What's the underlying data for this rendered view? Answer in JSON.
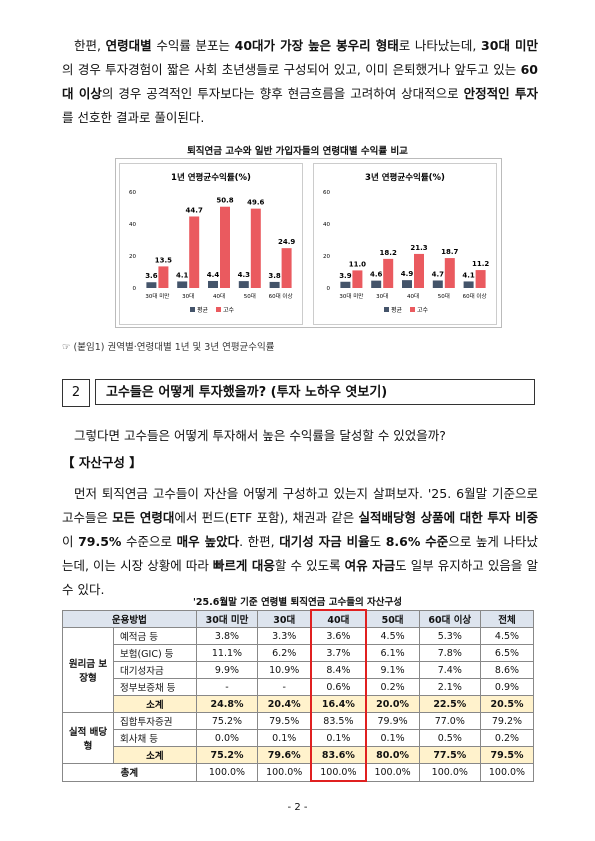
{
  "intro": [
    {
      "t": "한편, "
    },
    {
      "t": "연령대별",
      "b": true
    },
    {
      "t": " 수익률 분포는 "
    },
    {
      "t": "40대가 가장 높은 봉우리 형태",
      "b": true
    },
    {
      "t": "로 나타났는데, "
    },
    {
      "t": "30대 미만",
      "b": true
    },
    {
      "t": "의 경우 투자경험이 짧은 사회 초년생들로 구성되어 있고, 이미 은퇴했거나 앞두고 있는 "
    },
    {
      "t": "60대 이상",
      "b": true
    },
    {
      "t": "의 경우 공격적인 투자보다는 향후 현금흐름을 고려하여 상대적으로 "
    },
    {
      "t": "안정적인 투자",
      "b": true
    },
    {
      "t": "를 선호한 결과로 풀이된다."
    }
  ],
  "figure_caption": "퇴직연금 고수와 일반 가입자들의 연령대별 수익률 비교",
  "chart_data": [
    {
      "type": "bar",
      "title": "1년 연평균수익률(%)",
      "categories": [
        "30대 미만",
        "30대",
        "40대",
        "50대",
        "60대 이상"
      ],
      "series": [
        {
          "name": "평균",
          "color": "#44546a",
          "values": [
            3.6,
            4.1,
            4.4,
            4.3,
            3.8
          ]
        },
        {
          "name": "고수",
          "color": "#ea5a5f",
          "values": [
            13.5,
            44.7,
            50.8,
            49.6,
            24.9
          ]
        }
      ],
      "ylim": [
        0,
        60
      ],
      "yticks": [
        0,
        20,
        40,
        60
      ],
      "legend": "bottom"
    },
    {
      "type": "bar",
      "title": "3년 연평균수익률(%)",
      "categories": [
        "30대 미만",
        "30대",
        "40대",
        "50대",
        "60대 이상"
      ],
      "series": [
        {
          "name": "평균",
          "color": "#44546a",
          "values": [
            3.9,
            4.6,
            4.9,
            4.7,
            4.1
          ]
        },
        {
          "name": "고수",
          "color": "#ea5a5f",
          "values": [
            11.0,
            18.2,
            21.3,
            18.7,
            11.2
          ],
          "value_labels": [
            "11.0",
            "18.2",
            "21.3",
            "18.7",
            "11.2"
          ]
        }
      ],
      "ylim": [
        0,
        60
      ],
      "yticks": [
        0,
        20,
        40,
        60
      ],
      "legend": "bottom"
    }
  ],
  "note": "☞ (붙임1) 권역별·연령대별 1년 및 3년 연평균수익률",
  "section": {
    "number": "2",
    "title": "고수들은 어떻게 투자했을까? (투자 노하우 엿보기)"
  },
  "question": "그렇다면 고수들은 어떻게 투자해서 높은 수익률을 달성할 수 있었을까?",
  "subheading": "【 자산구성 】",
  "assets": [
    {
      "t": "먼저 퇴직연금 고수들이 자산을 어떻게 구성하고 있는지 살펴보자. '25. 6월말 기준으로 고수들은 "
    },
    {
      "t": "모든 연령대",
      "b": true
    },
    {
      "t": "에서 펀드(ETF 포함), 채권과 같은 "
    },
    {
      "t": "실적배당형 상품에 대한 투자 비중",
      "b": true
    },
    {
      "t": "이 "
    },
    {
      "t": "79.5%",
      "b": true
    },
    {
      "t": " 수준으로 "
    },
    {
      "t": "매우 높았다",
      "b": true
    },
    {
      "t": ". 한편, "
    },
    {
      "t": "대기성 자금 비율",
      "b": true
    },
    {
      "t": "도 "
    },
    {
      "t": "8.6% 수준",
      "b": true
    },
    {
      "t": "으로 높게 나타났는데, 이는 시장 상황에 따라 "
    },
    {
      "t": "빠르게 대응",
      "b": true
    },
    {
      "t": "할 수 있도록 "
    },
    {
      "t": "여유 자금",
      "b": true
    },
    {
      "t": "도 일부 유지하고 있음을 알 수 있다."
    }
  ],
  "table": {
    "title": "'25.6월말 기준 연령별 퇴직연금 고수들의 자산구성",
    "highlight_column": 3,
    "header": [
      "운용방법",
      "30대 미만",
      "30대",
      "40대",
      "50대",
      "60대 이상",
      "전체"
    ],
    "groups": [
      {
        "label": "원리금 보장형",
        "rows": [
          {
            "label": "예적금 등",
            "cells": [
              "3.8%",
              "3.3%",
              "3.6%",
              "4.5%",
              "5.3%",
              "4.5%"
            ]
          },
          {
            "label": "보험(GIC) 등",
            "cells": [
              "11.1%",
              "6.2%",
              "3.7%",
              "6.1%",
              "7.8%",
              "6.5%"
            ]
          },
          {
            "label": "대기성자금",
            "cells": [
              "9.9%",
              "10.9%",
              "8.4%",
              "9.1%",
              "7.4%",
              "8.6%"
            ]
          },
          {
            "label": "정부보증채 등",
            "cells": [
              "-",
              "-",
              "0.6%",
              "0.2%",
              "2.1%",
              "0.9%"
            ]
          },
          {
            "label": "소계",
            "subtotal": true,
            "cells": [
              "24.8%",
              "20.4%",
              "16.4%",
              "20.0%",
              "22.5%",
              "20.5%"
            ]
          }
        ]
      },
      {
        "label": "실적 배당형",
        "rows": [
          {
            "label": "집합투자증권",
            "cells": [
              "75.2%",
              "79.5%",
              "83.5%",
              "79.9%",
              "77.0%",
              "79.2%"
            ]
          },
          {
            "label": "회사채 등",
            "cells": [
              "0.0%",
              "0.1%",
              "0.1%",
              "0.1%",
              "0.5%",
              "0.2%"
            ]
          },
          {
            "label": "소계",
            "subtotal": true,
            "cells": [
              "75.2%",
              "79.6%",
              "83.6%",
              "80.0%",
              "77.5%",
              "79.5%"
            ]
          }
        ]
      }
    ],
    "total": {
      "label": "총계",
      "cells": [
        "100.0%",
        "100.0%",
        "100.0%",
        "100.0%",
        "100.0%",
        "100.0%"
      ]
    }
  },
  "page_number": "- 2 -"
}
